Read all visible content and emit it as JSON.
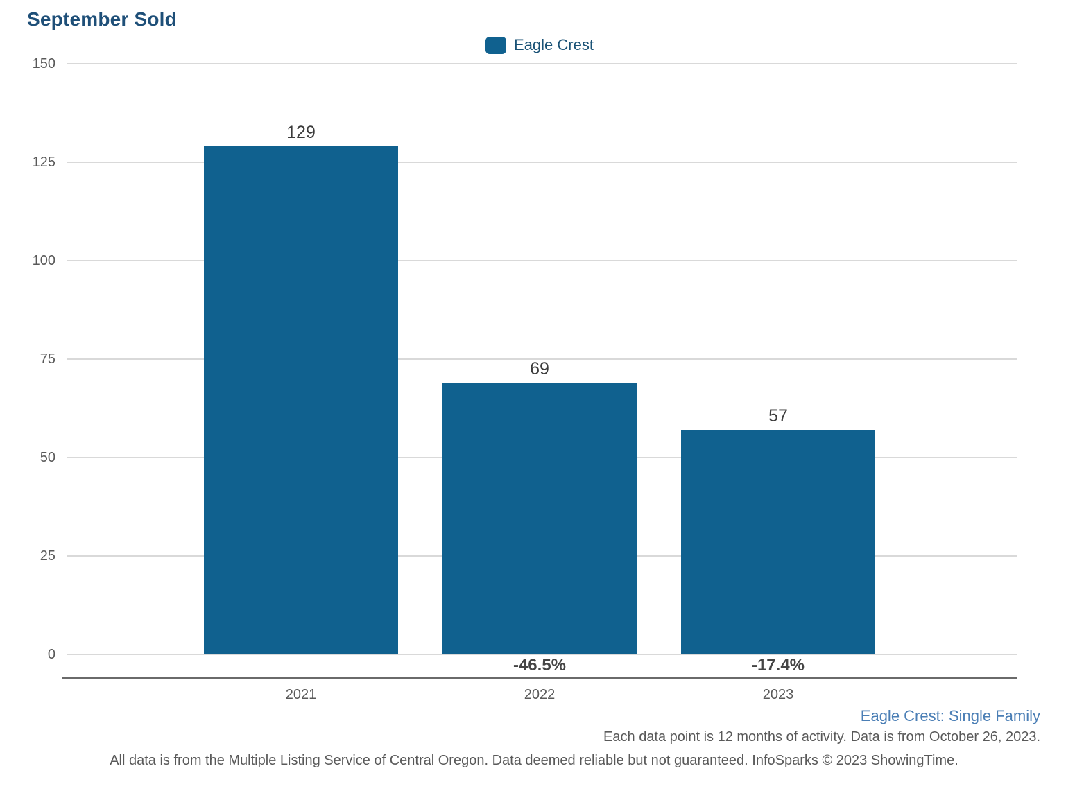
{
  "chart_data": {
    "type": "bar",
    "title": "September Sold",
    "legend": [
      "Eagle Crest"
    ],
    "legend_position": "top-center",
    "categories": [
      "2021",
      "2022",
      "2023"
    ],
    "series": [
      {
        "name": "Eagle Crest",
        "values": [
          129,
          69,
          57
        ]
      }
    ],
    "values": [
      129,
      69,
      57
    ],
    "value_labels": [
      "129",
      "69",
      "57"
    ],
    "pct_change_labels": [
      "",
      "-46.5%",
      "-17.4%"
    ],
    "xlabel": "",
    "ylabel": "",
    "ylim": [
      0,
      150
    ],
    "yticks": [
      0,
      25,
      50,
      75,
      100,
      125,
      150
    ],
    "grid": "horizontal",
    "bar_color": "#10618f"
  },
  "footer": {
    "series_note": "Eagle Crest: Single Family",
    "data_note": "Each data point is 12 months of activity. Data is from October 26, 2023.",
    "disclaimer": "All data is from the Multiple Listing Service of Central Oregon. Data deemed reliable but not guaranteed. InfoSparks © 2023 ShowingTime."
  },
  "colors": {
    "bar": "#10618f",
    "title": "#1e4f78",
    "legend_text": "#1a5276",
    "series_note_text": "#4a7eb5",
    "axis_text": "#595959",
    "value_label_text": "#3c3c3c",
    "pct_label_text": "#454545",
    "grid_line": "#d9d9d9",
    "axis_line": "#6a6a6a"
  }
}
